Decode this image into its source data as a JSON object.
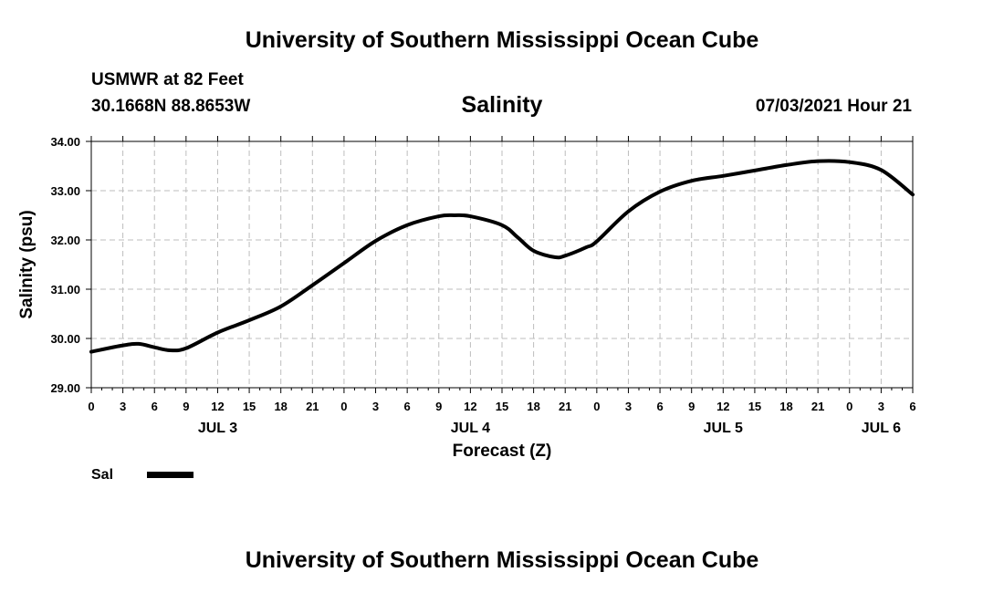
{
  "header": {
    "title": "University of Southern Mississippi Ocean Cube",
    "station": "USMWR at 82 Feet",
    "coords": "30.1668N  88.8653W",
    "timestamp": "07/03/2021 Hour 21"
  },
  "footer": {
    "title": "University of Southern Mississippi Ocean Cube"
  },
  "chart_data": {
    "type": "line",
    "title": "Salinity",
    "xlabel": "Forecast (Z)",
    "ylabel": "Salinity (psu)",
    "ylim": [
      29.0,
      34.0
    ],
    "yticks": [
      "29.00",
      "30.00",
      "31.00",
      "32.00",
      "33.00",
      "34.00"
    ],
    "xlim": [
      0,
      78
    ],
    "xticks": [
      "0",
      "3",
      "6",
      "9",
      "12",
      "15",
      "18",
      "21",
      "0",
      "3",
      "6",
      "9",
      "12",
      "15",
      "18",
      "21",
      "0",
      "3",
      "6",
      "9",
      "12",
      "15",
      "18",
      "21",
      "0",
      "3",
      "6"
    ],
    "date_labels": [
      {
        "label": "JUL 3",
        "hour": 12
      },
      {
        "label": "JUL 4",
        "hour": 36
      },
      {
        "label": "JUL 5",
        "hour": 60
      },
      {
        "label": "JUL 6",
        "hour": 75
      }
    ],
    "grid": true,
    "legend_position": "bottom-left",
    "series": [
      {
        "name": "Sal",
        "color": "#000000",
        "x": [
          0,
          3,
          4.5,
          6,
          7.5,
          9,
          12,
          15,
          18,
          21,
          24,
          27,
          30,
          33,
          34.5,
          36,
          39,
          40.5,
          42,
          44,
          45,
          47,
          48,
          51,
          54,
          57,
          60,
          63,
          66,
          69,
          72,
          75,
          78
        ],
        "y": [
          29.73,
          29.86,
          29.89,
          29.82,
          29.76,
          29.8,
          30.12,
          30.37,
          30.65,
          31.08,
          31.53,
          31.98,
          32.3,
          32.48,
          32.5,
          32.48,
          32.3,
          32.05,
          31.78,
          31.65,
          31.68,
          31.85,
          31.97,
          32.58,
          32.98,
          33.2,
          33.3,
          33.41,
          33.52,
          33.6,
          33.58,
          33.42,
          32.92
        ]
      }
    ]
  }
}
